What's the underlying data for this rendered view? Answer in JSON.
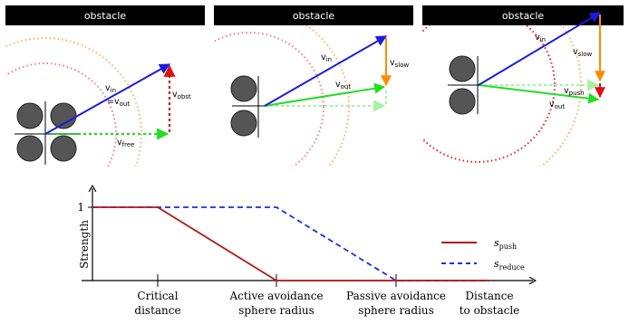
{
  "panels": [
    {
      "title": "obstacle",
      "labels": {
        "v_in": "v",
        "v_in_sub": "in",
        "eq": "=v",
        "eq_sub": "out",
        "v_obst": "v",
        "v_obst_sub": "obst",
        "v_free": "v",
        "v_free_sub": "free"
      }
    },
    {
      "title": "obstacle",
      "labels": {
        "v_in": "v",
        "v_in_sub": "in",
        "v_slow": "v",
        "v_slow_sub": "slow",
        "v_out": "v",
        "v_out_sub": "out"
      }
    },
    {
      "title": "obstacle",
      "labels": {
        "v_in": "v",
        "v_in_sub": "in",
        "v_slow": "v",
        "v_slow_sub": "slow",
        "v_push": "v",
        "v_push_sub": "push",
        "v_out": "v",
        "v_out_sub": "out"
      }
    }
  ],
  "plot": {
    "ylabel": "Strength",
    "y_tick": "1",
    "x_ticks": [
      {
        "line1": "Critical",
        "line2": "distance"
      },
      {
        "line1": "Active avoidance",
        "line2": "sphere radius"
      },
      {
        "line1": "Passive avoidance",
        "line2": "sphere radius"
      },
      {
        "line1": "Distance",
        "line2": "to obstacle"
      }
    ],
    "legend": [
      {
        "label": "s",
        "sub": "push",
        "color": "#b21818",
        "dash": "solid"
      },
      {
        "label": "s",
        "sub": "reduce",
        "color": "#1a2fd6",
        "dash": "dashed"
      }
    ],
    "series": {
      "push": {
        "points": [
          [
            0,
            1
          ],
          [
            1,
            1
          ],
          [
            2,
            0
          ],
          [
            3,
            0
          ],
          [
            4,
            0
          ]
        ]
      },
      "reduce": {
        "points": [
          [
            0,
            1
          ],
          [
            1,
            1
          ],
          [
            2,
            1
          ],
          [
            3,
            0
          ],
          [
            4,
            0
          ]
        ]
      }
    }
  },
  "colors": {
    "blue": "#1a1ae0",
    "green": "#22dd22",
    "light_green": "#a8f0a8",
    "red": "#dd1111",
    "orange": "#ff8c00",
    "wheel": "#555555"
  }
}
